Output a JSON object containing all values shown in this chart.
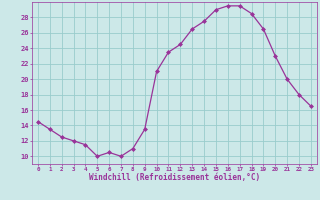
{
  "x": [
    0,
    1,
    2,
    3,
    4,
    5,
    6,
    7,
    8,
    9,
    10,
    11,
    12,
    13,
    14,
    15,
    16,
    17,
    18,
    19,
    20,
    21,
    22,
    23
  ],
  "y": [
    14.5,
    13.5,
    12.5,
    12.0,
    11.5,
    10.0,
    10.5,
    10.0,
    11.0,
    13.5,
    21.0,
    23.5,
    24.5,
    26.5,
    27.5,
    29.0,
    29.5,
    29.5,
    28.5,
    26.5,
    23.0,
    20.0,
    18.0,
    16.5
  ],
  "line_color": "#993399",
  "marker": "D",
  "marker_size": 2.0,
  "bg_color": "#cce8e8",
  "grid_color": "#99cccc",
  "xlabel": "Windchill (Refroidissement éolien,°C)",
  "xlabel_color": "#993399",
  "tick_color": "#993399",
  "yticks": [
    10,
    12,
    14,
    16,
    18,
    20,
    22,
    24,
    26,
    28
  ],
  "xlim": [
    -0.5,
    23.5
  ],
  "ylim": [
    9.0,
    30.0
  ]
}
